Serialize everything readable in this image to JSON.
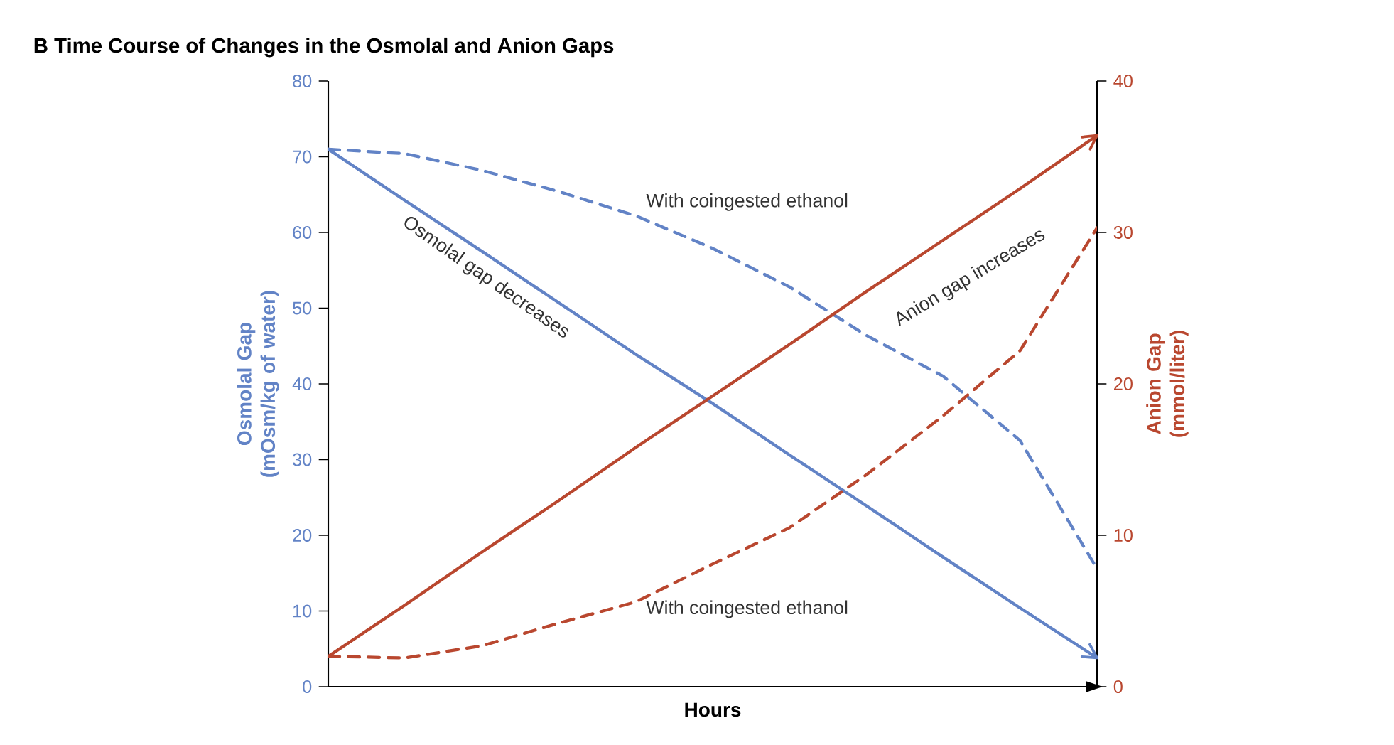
{
  "chart_data": {
    "type": "line",
    "title": "B  Time Course of Changes in the Osmolal and Anion Gaps",
    "xlabel": "Hours",
    "ylabel": "Osmolal Gap (mOsm/kg of water)",
    "y2label": "Anion Gap (mmol/liter)",
    "categories": [
      null,
      null,
      null,
      null,
      null,
      null,
      null,
      null,
      null,
      null,
      null
    ],
    "ylim": [
      0,
      80
    ],
    "yticks": [
      0,
      10,
      20,
      30,
      40,
      50,
      60,
      70,
      80
    ],
    "y2lim": [
      0,
      40
    ],
    "y2ticks": [
      0,
      10,
      20,
      30,
      40
    ],
    "tick_labels": "y",
    "series": [
      {
        "color": "#6283c6",
        "line_style": "solid",
        "values": [
          71,
          64.2,
          57.5,
          50.7,
          43.9,
          37.4,
          30.6,
          23.9,
          17.1,
          10.4,
          3.8
        ]
      },
      {
        "color": "#6283c6",
        "line_style": "dashed",
        "values": [
          71.0,
          70.4,
          68.2,
          65.4,
          62.2,
          57.9,
          52.8,
          46.4,
          41.0,
          32.5,
          15.6
        ]
      },
      {
        "color": "#b9472f",
        "line_style": "solid",
        "axis": "y2",
        "values": [
          2,
          5.4,
          8.9,
          12.3,
          15.8,
          19.2,
          22.6,
          26.1,
          29.5,
          32.9,
          36.4
        ]
      },
      {
        "color": "#b9472f",
        "line_style": "dashed",
        "axis": "y2",
        "values": [
          2.0,
          1.9,
          2.7,
          4.2,
          5.6,
          8.1,
          10.5,
          14.0,
          17.9,
          22.2,
          30.3
        ]
      }
    ],
    "annotations": [
      "Osmolal gap decreases",
      "With coingested ethanol",
      "Anion gap increases",
      "With coingested ethanol"
    ]
  }
}
